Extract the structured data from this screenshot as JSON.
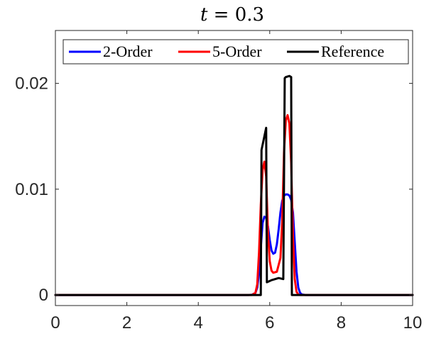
{
  "chart_data": {
    "type": "line",
    "title_var": "t",
    "title_rest": " = 0.3",
    "xlim": [
      0,
      10
    ],
    "ylim": [
      -0.001,
      0.025
    ],
    "xticks": [
      0,
      2,
      4,
      6,
      8,
      10
    ],
    "xtick_labels": [
      "0",
      "2",
      "4",
      "6",
      "8",
      "10"
    ],
    "yticks": [
      0,
      0.01,
      0.02
    ],
    "ytick_labels": [
      "0",
      "0.01",
      "0.02"
    ],
    "grid": false,
    "legend_position": "top",
    "series": [
      {
        "name": "2-Order",
        "color": "#0000ff",
        "x": [
          0,
          5.4,
          5.5,
          5.6,
          5.65,
          5.7,
          5.75,
          5.8,
          5.85,
          5.9,
          5.95,
          6.0,
          6.05,
          6.1,
          6.15,
          6.2,
          6.25,
          6.3,
          6.35,
          6.4,
          6.45,
          6.5,
          6.55,
          6.6,
          6.65,
          6.7,
          6.75,
          6.8,
          6.85,
          6.9,
          7.0,
          10
        ],
        "y": [
          0,
          0,
          2e-05,
          0.0002,
          0.0007,
          0.002,
          0.0045,
          0.0068,
          0.0074,
          0.0073,
          0.0065,
          0.0052,
          0.0042,
          0.0039,
          0.004,
          0.0048,
          0.0062,
          0.0078,
          0.0089,
          0.0094,
          0.0095,
          0.0095,
          0.0094,
          0.009,
          0.0078,
          0.005,
          0.0022,
          0.0007,
          0.0002,
          5e-05,
          0,
          0
        ]
      },
      {
        "name": "5-Order",
        "color": "#ff0000",
        "x": [
          0,
          5.5,
          5.6,
          5.65,
          5.7,
          5.75,
          5.8,
          5.85,
          5.9,
          5.95,
          6.0,
          6.05,
          6.1,
          6.2,
          6.3,
          6.35,
          6.4,
          6.45,
          6.5,
          6.55,
          6.6,
          6.65,
          6.7,
          6.75,
          6.8,
          6.85,
          10
        ],
        "y": [
          0,
          0,
          0.0002,
          0.001,
          0.004,
          0.0085,
          0.0118,
          0.0126,
          0.0112,
          0.006,
          0.0032,
          0.0023,
          0.0021,
          0.0022,
          0.0035,
          0.007,
          0.0135,
          0.0165,
          0.017,
          0.0162,
          0.0125,
          0.0055,
          0.0015,
          0.0003,
          5e-05,
          0,
          0
        ]
      },
      {
        "name": "Reference",
        "color": "#000000",
        "x": [
          0,
          5.75,
          5.77,
          5.9,
          5.92,
          6.05,
          6.15,
          6.25,
          6.38,
          6.42,
          6.45,
          6.55,
          6.6,
          6.62,
          10
        ],
        "y": [
          0,
          0,
          0.0137,
          0.0158,
          0.0012,
          0.0014,
          0.0015,
          0.0016,
          0.0015,
          0.0205,
          0.0206,
          0.0207,
          0.0206,
          0,
          0
        ]
      }
    ]
  }
}
